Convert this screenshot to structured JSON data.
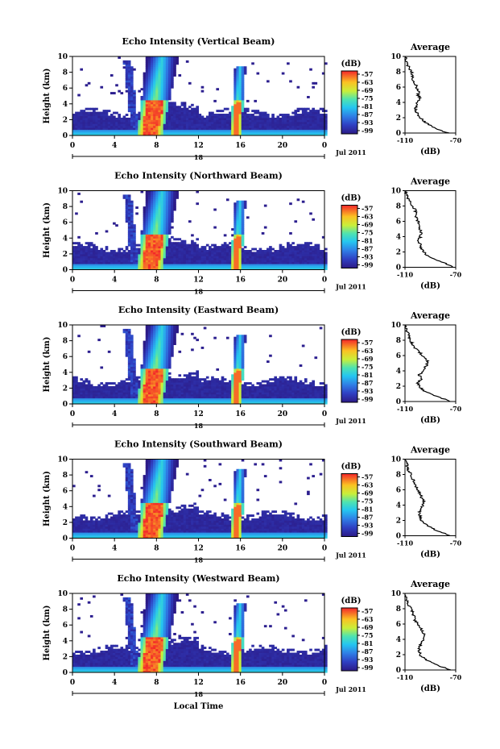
{
  "chart_data": [
    {
      "type": "heatmap",
      "title": "Echo Intensity (Vertical Beam)",
      "ylabel": "Height (km)",
      "xlim": [
        0,
        24
      ],
      "ylim": [
        0,
        10
      ],
      "x_ticks": [
        "0",
        "4",
        "8",
        "12",
        "16",
        "20",
        "0"
      ],
      "y_ticks": [
        "0",
        "2",
        "4",
        "6",
        "8",
        "10"
      ],
      "day_label": "18",
      "month_label": "Jul 2011",
      "colorbar": {
        "label": "(dB)",
        "ticks": [
          "-57",
          "-63",
          "-69",
          "-75",
          "-81",
          "-87",
          "-93",
          "-99"
        ]
      },
      "average": {
        "title": "Average",
        "xlabel": "(dB)",
        "xlim": [
          -110,
          -70
        ],
        "x_ticks": [
          "-110",
          "-70"
        ],
        "y_ticks": [
          "0",
          "2",
          "4",
          "6",
          "8",
          "10"
        ],
        "heights": [
          0,
          0.5,
          1,
          1.5,
          2,
          2.5,
          3,
          3.5,
          4,
          4.5,
          5,
          5.5,
          6,
          6.5,
          7,
          7.5,
          8,
          8.5,
          9,
          9.5,
          10
        ],
        "values": [
          -76,
          -84,
          -90,
          -95,
          -98,
          -100,
          -102,
          -101,
          -100,
          -98,
          -100,
          -99,
          -101,
          -102,
          -104,
          -104,
          -105,
          -107,
          -108,
          -109,
          -110
        ]
      }
    },
    {
      "type": "heatmap",
      "title": "Echo Intensity (Northward Beam)",
      "ylabel": "Height (km)",
      "xlim": [
        0,
        24
      ],
      "ylim": [
        0,
        10
      ],
      "x_ticks": [
        "0",
        "4",
        "8",
        "12",
        "16",
        "20",
        "0"
      ],
      "y_ticks": [
        "0",
        "2",
        "4",
        "6",
        "8",
        "10"
      ],
      "day_label": "18",
      "month_label": "Jul 2011",
      "colorbar": {
        "label": "(dB)",
        "ticks": [
          "-57",
          "-63",
          "-69",
          "-75",
          "-81",
          "-87",
          "-93",
          "-99"
        ]
      },
      "average": {
        "title": "Average",
        "xlabel": "(dB)",
        "xlim": [
          -110,
          -70
        ],
        "x_ticks": [
          "-110",
          "-70"
        ],
        "y_ticks": [
          "0",
          "2",
          "4",
          "6",
          "8",
          "10"
        ],
        "heights": [
          0,
          0.5,
          1,
          1.5,
          2,
          2.5,
          3,
          3.5,
          4,
          4.5,
          5,
          5.5,
          6,
          6.5,
          7,
          7.5,
          8,
          8.5,
          9,
          9.5,
          10
        ],
        "values": [
          -72,
          -78,
          -86,
          -92,
          -95,
          -97,
          -98,
          -99,
          -98,
          -97,
          -98,
          -99,
          -100,
          -101,
          -101,
          -102,
          -104,
          -106,
          -108,
          -109,
          -110
        ]
      }
    },
    {
      "type": "heatmap",
      "title": "Echo Intensity (Eastward Beam)",
      "ylabel": "Height (km)",
      "xlim": [
        0,
        24
      ],
      "ylim": [
        0,
        10
      ],
      "x_ticks": [
        "0",
        "4",
        "8",
        "12",
        "16",
        "20",
        "0"
      ],
      "y_ticks": [
        "0",
        "2",
        "4",
        "6",
        "8",
        "10"
      ],
      "day_label": "18",
      "month_label": "Jul 2011",
      "colorbar": {
        "label": "(dB)",
        "ticks": [
          "-57",
          "-63",
          "-69",
          "-75",
          "-81",
          "-87",
          "-93",
          "-99"
        ]
      },
      "average": {
        "title": "Average",
        "xlabel": "(dB)",
        "xlim": [
          -110,
          -70
        ],
        "x_ticks": [
          "-110",
          "-70"
        ],
        "y_ticks": [
          "0",
          "2",
          "4",
          "6",
          "8",
          "10"
        ],
        "heights": [
          0,
          0.5,
          1,
          1.5,
          2,
          2.5,
          3,
          3.5,
          4,
          4.5,
          5,
          5.5,
          6,
          6.5,
          7,
          7.5,
          8,
          8.5,
          9,
          9.5,
          10
        ],
        "values": [
          -74,
          -82,
          -90,
          -96,
          -99,
          -100,
          -97,
          -99,
          -95,
          -94,
          -92,
          -93,
          -96,
          -99,
          -102,
          -104,
          -106,
          -107,
          -108,
          -109,
          -110
        ]
      }
    },
    {
      "type": "heatmap",
      "title": "Echo Intensity (Southward Beam)",
      "ylabel": "Height (km)",
      "xlim": [
        0,
        24
      ],
      "ylim": [
        0,
        10
      ],
      "x_ticks": [
        "0",
        "4",
        "8",
        "12",
        "16",
        "20",
        "0"
      ],
      "y_ticks": [
        "0",
        "2",
        "4",
        "6",
        "8",
        "10"
      ],
      "day_label": "18",
      "month_label": "Jul 2011",
      "colorbar": {
        "label": "(dB)",
        "ticks": [
          "-57",
          "-63",
          "-69",
          "-75",
          "-81",
          "-87",
          "-93",
          "-99"
        ]
      },
      "average": {
        "title": "Average",
        "xlabel": "(dB)",
        "xlim": [
          -110,
          -70
        ],
        "x_ticks": [
          "-110",
          "-70"
        ],
        "y_ticks": [
          "0",
          "2",
          "4",
          "6",
          "8",
          "10"
        ],
        "heights": [
          0,
          0.5,
          1,
          1.5,
          2,
          2.5,
          3,
          3.5,
          4,
          4.5,
          5,
          5.5,
          6,
          6.5,
          7,
          7.5,
          8,
          8.5,
          9,
          9.5,
          10
        ],
        "values": [
          -74,
          -82,
          -89,
          -94,
          -97,
          -98,
          -99,
          -98,
          -96,
          -95,
          -97,
          -98,
          -100,
          -102,
          -103,
          -104,
          -105,
          -107,
          -108,
          -109,
          -110
        ]
      }
    },
    {
      "type": "heatmap",
      "title": "Echo Intensity (Westward Beam)",
      "ylabel": "Height (km)",
      "xlabel": "Local Time",
      "xlim": [
        0,
        24
      ],
      "ylim": [
        0,
        10
      ],
      "x_ticks": [
        "0",
        "4",
        "8",
        "12",
        "16",
        "20",
        "0"
      ],
      "y_ticks": [
        "0",
        "2",
        "4",
        "6",
        "8",
        "10"
      ],
      "day_label": "18",
      "month_label": "Jul 2011",
      "colorbar": {
        "label": "(dB)",
        "ticks": [
          "-57",
          "-63",
          "-69",
          "-75",
          "-81",
          "-87",
          "-93",
          "-99"
        ]
      },
      "average": {
        "title": "Average",
        "xlabel": "(dB)",
        "xlim": [
          -110,
          -70
        ],
        "x_ticks": [
          "-110",
          "-70"
        ],
        "y_ticks": [
          "0",
          "2",
          "4",
          "6",
          "8",
          "10"
        ],
        "heights": [
          0,
          0.5,
          1,
          1.5,
          2,
          2.5,
          3,
          3.5,
          4,
          4.5,
          5,
          5.5,
          6,
          6.5,
          7,
          7.5,
          8,
          8.5,
          9,
          9.5,
          10
        ],
        "values": [
          -74,
          -82,
          -89,
          -95,
          -98,
          -99,
          -99,
          -97,
          -96,
          -94,
          -96,
          -98,
          -100,
          -102,
          -103,
          -104,
          -105,
          -107,
          -108,
          -109,
          -110
        ]
      }
    }
  ]
}
